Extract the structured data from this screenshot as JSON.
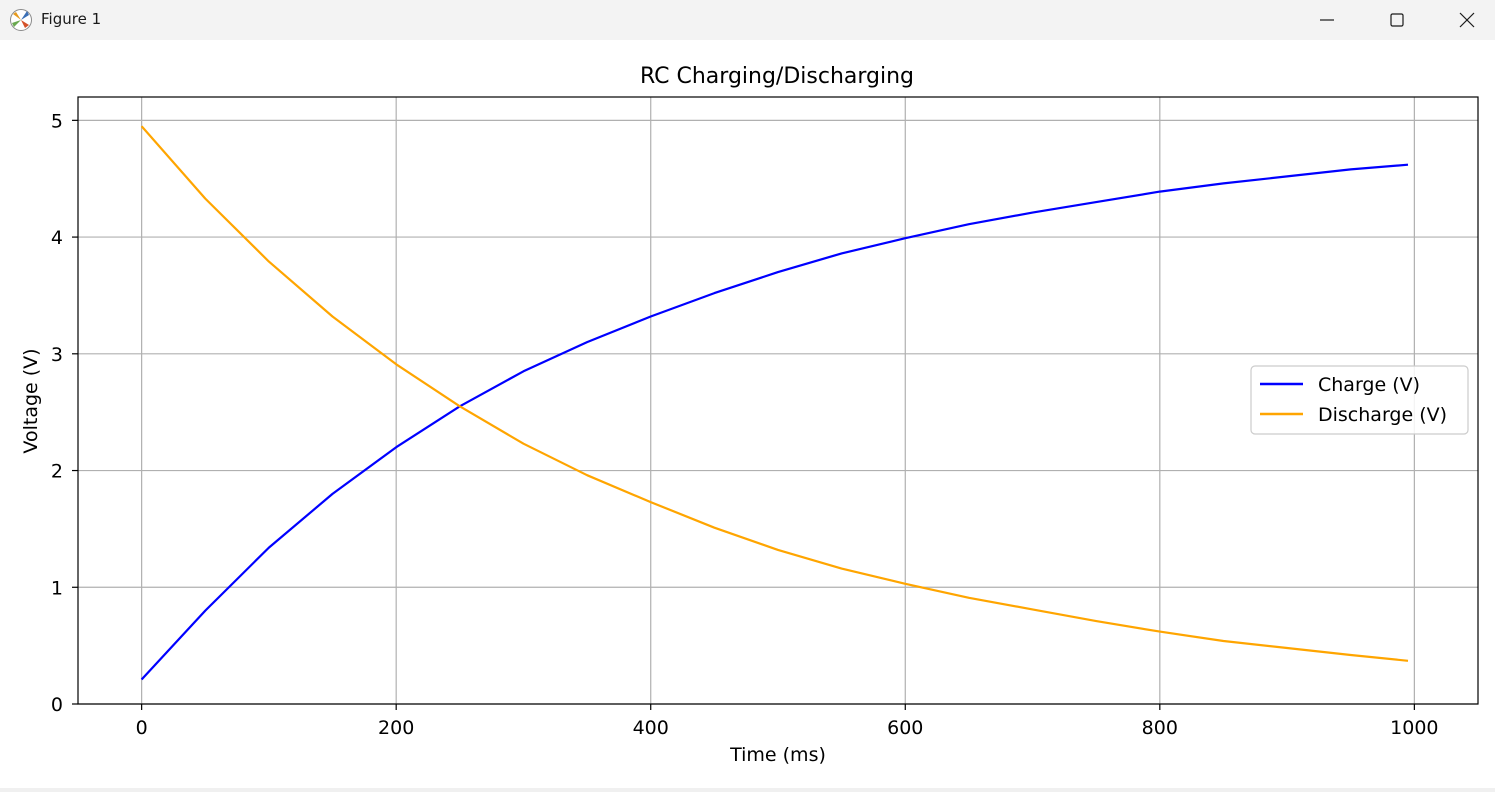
{
  "window": {
    "title": "Figure 1",
    "icon": "matplotlib-icon",
    "controls": [
      "minimize-icon",
      "maximize-icon",
      "close-icon"
    ]
  },
  "chart_data": {
    "type": "line",
    "title": "RC Charging/Discharging",
    "xlabel": "Time (ms)",
    "ylabel": "Voltage (V)",
    "xlim": [
      -50,
      1050
    ],
    "ylim": [
      0,
      5.2
    ],
    "xticks": [
      0,
      200,
      400,
      600,
      800,
      1000
    ],
    "xtick_labels": [
      "0",
      "200",
      "400",
      "600",
      "800",
      "1000"
    ],
    "yticks": [
      0,
      1,
      2,
      3,
      4,
      5
    ],
    "ytick_labels": [
      "0",
      "1",
      "2",
      "3",
      "4",
      "5"
    ],
    "grid": true,
    "legend_position": "center-right",
    "x": [
      0,
      50,
      100,
      150,
      200,
      250,
      300,
      350,
      400,
      450,
      500,
      550,
      600,
      650,
      700,
      750,
      800,
      850,
      900,
      950,
      995
    ],
    "series": [
      {
        "name": "Charge (V)",
        "color": "#0000ff",
        "values": [
          0.21,
          0.8,
          1.34,
          1.8,
          2.2,
          2.55,
          2.85,
          3.1,
          3.32,
          3.52,
          3.7,
          3.86,
          3.99,
          4.11,
          4.21,
          4.3,
          4.39,
          4.46,
          4.52,
          4.58,
          4.62
        ]
      },
      {
        "name": "Discharge (V)",
        "color": "#ffa500",
        "values": [
          4.95,
          4.33,
          3.79,
          3.32,
          2.91,
          2.55,
          2.23,
          1.96,
          1.73,
          1.51,
          1.32,
          1.16,
          1.03,
          0.91,
          0.81,
          0.71,
          0.62,
          0.54,
          0.48,
          0.42,
          0.37
        ]
      }
    ]
  }
}
